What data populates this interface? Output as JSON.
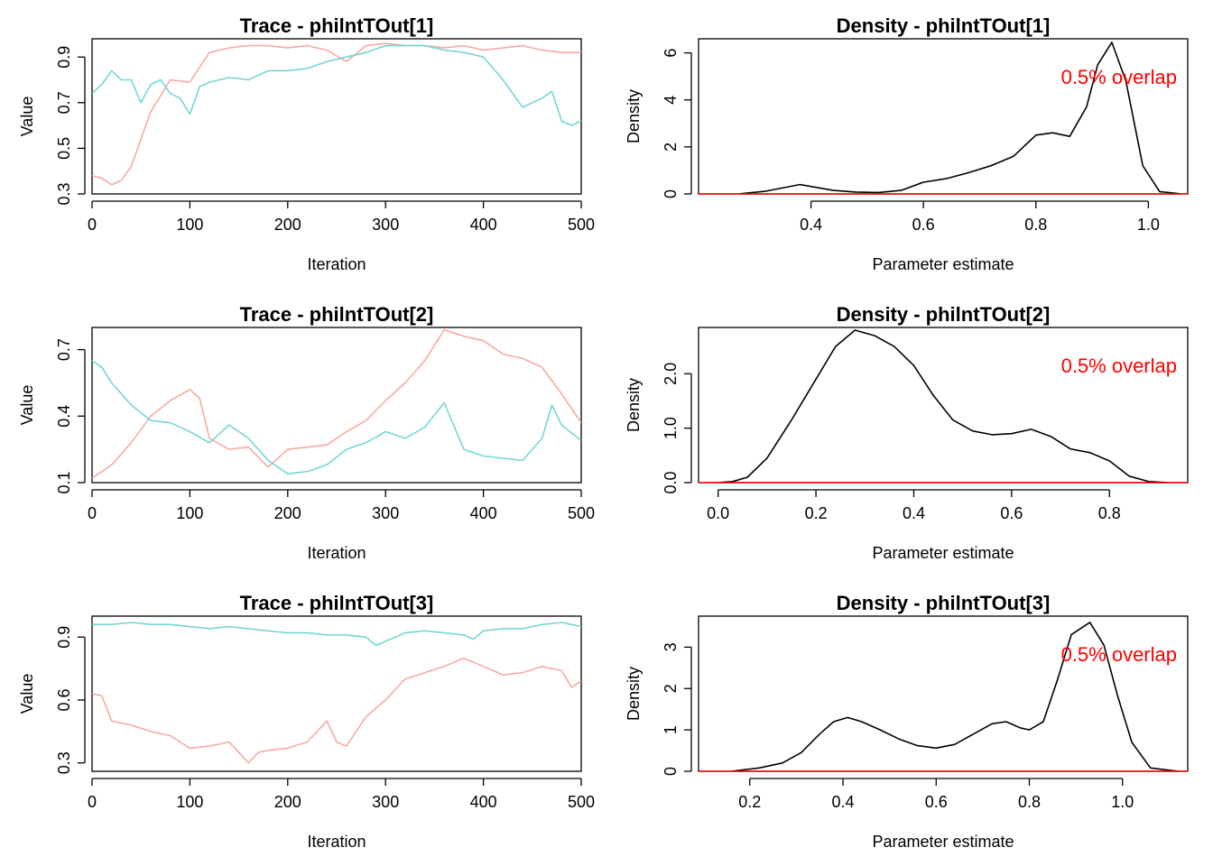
{
  "chart_data": [
    {
      "type": "line",
      "title": "Trace - philntTOut[1]",
      "xlabel": "Iteration",
      "ylabel": "Value",
      "xlim": [
        0,
        500
      ],
      "ylim": [
        0.3,
        0.98
      ],
      "xticks": [
        0,
        100,
        200,
        300,
        400,
        500
      ],
      "yticks": [
        0.3,
        0.5,
        0.7,
        0.9
      ],
      "ytick_labels": [
        "0.3",
        "0.5",
        "0.7",
        "0.9"
      ],
      "series": [
        {
          "color": "#f8a9a2",
          "x": [
            0,
            10,
            20,
            30,
            40,
            60,
            80,
            100,
            120,
            140,
            160,
            180,
            200,
            220,
            240,
            260,
            280,
            300,
            320,
            340,
            360,
            380,
            400,
            420,
            440,
            460,
            480,
            500
          ],
          "values": [
            0.38,
            0.37,
            0.34,
            0.36,
            0.42,
            0.66,
            0.8,
            0.79,
            0.92,
            0.94,
            0.95,
            0.95,
            0.94,
            0.95,
            0.93,
            0.88,
            0.95,
            0.96,
            0.95,
            0.95,
            0.94,
            0.95,
            0.93,
            0.94,
            0.95,
            0.93,
            0.92,
            0.92
          ]
        },
        {
          "color": "#75d6d6",
          "x": [
            0,
            10,
            20,
            30,
            40,
            50,
            60,
            70,
            80,
            90,
            100,
            110,
            120,
            140,
            160,
            180,
            200,
            220,
            240,
            260,
            280,
            300,
            320,
            340,
            360,
            380,
            400,
            420,
            440,
            460,
            470,
            480,
            490,
            500
          ],
          "values": [
            0.74,
            0.78,
            0.84,
            0.8,
            0.8,
            0.7,
            0.78,
            0.8,
            0.74,
            0.72,
            0.65,
            0.77,
            0.79,
            0.81,
            0.8,
            0.84,
            0.84,
            0.85,
            0.88,
            0.9,
            0.92,
            0.95,
            0.95,
            0.95,
            0.93,
            0.92,
            0.9,
            0.8,
            0.68,
            0.72,
            0.75,
            0.62,
            0.6,
            0.62
          ]
        }
      ]
    },
    {
      "type": "line",
      "title": "Density - philntTOut[1]",
      "xlabel": "Parameter estimate",
      "ylabel": "Density",
      "xlim": [
        0.2,
        1.07
      ],
      "ylim": [
        0,
        6.6
      ],
      "xticks": [
        0.4,
        0.6,
        0.8,
        1.0
      ],
      "xtick_labels": [
        "0.4",
        "0.6",
        "0.8",
        "1.0"
      ],
      "yticks": [
        0,
        2,
        4,
        6
      ],
      "ytick_labels": [
        "0",
        "2",
        "4",
        "6"
      ],
      "annotation": "0.5% overlap",
      "series": [
        {
          "color": "#000000",
          "x": [
            0.27,
            0.32,
            0.38,
            0.44,
            0.48,
            0.52,
            0.56,
            0.6,
            0.64,
            0.68,
            0.72,
            0.76,
            0.8,
            0.83,
            0.86,
            0.89,
            0.91,
            0.935,
            0.96,
            0.99,
            1.02,
            1.06
          ],
          "values": [
            0.0,
            0.12,
            0.4,
            0.15,
            0.08,
            0.06,
            0.15,
            0.5,
            0.65,
            0.9,
            1.2,
            1.6,
            2.5,
            2.6,
            2.45,
            3.7,
            5.5,
            6.45,
            4.8,
            1.2,
            0.1,
            0.0
          ]
        }
      ],
      "hline": {
        "y": 0,
        "color": "#ff0000"
      }
    },
    {
      "type": "line",
      "title": "Trace - philntTOut[2]",
      "xlabel": "Iteration",
      "ylabel": "Value",
      "xlim": [
        0,
        500
      ],
      "ylim": [
        0.1,
        0.8
      ],
      "xticks": [
        0,
        100,
        200,
        300,
        400,
        500
      ],
      "yticks": [
        0.1,
        0.4,
        0.7
      ],
      "ytick_labels": [
        "0.1",
        "0.4",
        "0.7"
      ],
      "series": [
        {
          "color": "#f8a9a2",
          "x": [
            0,
            20,
            40,
            60,
            80,
            100,
            110,
            120,
            140,
            160,
            180,
            200,
            220,
            240,
            260,
            280,
            300,
            320,
            340,
            360,
            380,
            400,
            420,
            440,
            460,
            480,
            500
          ],
          "values": [
            0.12,
            0.18,
            0.28,
            0.4,
            0.47,
            0.52,
            0.48,
            0.3,
            0.25,
            0.26,
            0.17,
            0.25,
            0.26,
            0.27,
            0.33,
            0.38,
            0.47,
            0.55,
            0.65,
            0.79,
            0.76,
            0.74,
            0.68,
            0.66,
            0.62,
            0.5,
            0.37
          ]
        },
        {
          "color": "#75d6d6",
          "x": [
            0,
            10,
            20,
            40,
            60,
            80,
            100,
            120,
            140,
            160,
            180,
            200,
            220,
            240,
            260,
            280,
            300,
            320,
            340,
            360,
            380,
            400,
            420,
            440,
            460,
            470,
            480,
            500
          ],
          "values": [
            0.65,
            0.62,
            0.55,
            0.45,
            0.38,
            0.37,
            0.33,
            0.28,
            0.36,
            0.3,
            0.2,
            0.14,
            0.15,
            0.18,
            0.25,
            0.28,
            0.33,
            0.3,
            0.35,
            0.46,
            0.25,
            0.22,
            0.21,
            0.2,
            0.3,
            0.45,
            0.36,
            0.29
          ]
        }
      ]
    },
    {
      "type": "line",
      "title": "Density - philntTOut[2]",
      "xlabel": "Parameter estimate",
      "ylabel": "Density",
      "xlim": [
        -0.04,
        0.96
      ],
      "ylim": [
        0,
        2.85
      ],
      "xticks": [
        0.0,
        0.2,
        0.4,
        0.6,
        0.8
      ],
      "xtick_labels": [
        "0.0",
        "0.2",
        "0.4",
        "0.6",
        "0.8"
      ],
      "yticks": [
        0.0,
        1.0,
        2.0
      ],
      "ytick_labels": [
        "0.0",
        "1.0",
        "2.0"
      ],
      "annotation": "0.5% overlap",
      "series": [
        {
          "color": "#000000",
          "x": [
            0.0,
            0.03,
            0.06,
            0.1,
            0.15,
            0.2,
            0.24,
            0.28,
            0.32,
            0.36,
            0.4,
            0.44,
            0.48,
            0.52,
            0.56,
            0.6,
            0.64,
            0.68,
            0.72,
            0.76,
            0.8,
            0.84,
            0.88,
            0.92
          ],
          "values": [
            0.0,
            0.02,
            0.1,
            0.45,
            1.15,
            1.9,
            2.5,
            2.8,
            2.7,
            2.5,
            2.15,
            1.6,
            1.15,
            0.95,
            0.88,
            0.9,
            0.98,
            0.85,
            0.62,
            0.55,
            0.4,
            0.12,
            0.02,
            0.0
          ]
        }
      ],
      "hline": {
        "y": 0,
        "color": "#ff0000"
      }
    },
    {
      "type": "line",
      "title": "Trace - philntTOut[3]",
      "xlabel": "Iteration",
      "ylabel": "Value",
      "xlim": [
        0,
        500
      ],
      "ylim": [
        0.26,
        1.0
      ],
      "xticks": [
        0,
        100,
        200,
        300,
        400,
        500
      ],
      "yticks": [
        0.3,
        0.6,
        0.9
      ],
      "ytick_labels": [
        "0.3",
        "0.6",
        "0.9"
      ],
      "series": [
        {
          "color": "#f8a9a2",
          "x": [
            0,
            10,
            20,
            40,
            60,
            80,
            100,
            120,
            140,
            160,
            170,
            180,
            200,
            220,
            240,
            250,
            260,
            280,
            300,
            320,
            340,
            360,
            380,
            400,
            420,
            440,
            460,
            480,
            490,
            500
          ],
          "values": [
            0.63,
            0.62,
            0.5,
            0.48,
            0.45,
            0.43,
            0.37,
            0.38,
            0.4,
            0.3,
            0.35,
            0.36,
            0.37,
            0.4,
            0.5,
            0.4,
            0.38,
            0.52,
            0.6,
            0.7,
            0.73,
            0.76,
            0.8,
            0.76,
            0.72,
            0.73,
            0.76,
            0.74,
            0.66,
            0.69
          ]
        },
        {
          "color": "#75d6d6",
          "x": [
            0,
            20,
            40,
            60,
            80,
            100,
            120,
            140,
            160,
            180,
            200,
            220,
            240,
            260,
            280,
            290,
            300,
            320,
            340,
            360,
            380,
            390,
            400,
            420,
            440,
            460,
            480,
            500
          ],
          "values": [
            0.96,
            0.96,
            0.97,
            0.96,
            0.96,
            0.95,
            0.94,
            0.95,
            0.94,
            0.93,
            0.92,
            0.92,
            0.91,
            0.91,
            0.9,
            0.86,
            0.88,
            0.92,
            0.93,
            0.92,
            0.91,
            0.89,
            0.93,
            0.94,
            0.94,
            0.96,
            0.97,
            0.95
          ]
        }
      ]
    },
    {
      "type": "line",
      "title": "Density - philntTOut[3]",
      "xlabel": "Parameter estimate",
      "ylabel": "Density",
      "xlim": [
        0.09,
        1.14
      ],
      "ylim": [
        0,
        3.75
      ],
      "xticks": [
        0.2,
        0.4,
        0.6,
        0.8,
        1.0
      ],
      "xtick_labels": [
        "0.2",
        "0.4",
        "0.6",
        "0.8",
        "1.0"
      ],
      "yticks": [
        0,
        1,
        2,
        3
      ],
      "ytick_labels": [
        "0",
        "1",
        "2",
        "3"
      ],
      "annotation": "0.5% overlap",
      "series": [
        {
          "color": "#000000",
          "x": [
            0.16,
            0.22,
            0.27,
            0.31,
            0.35,
            0.38,
            0.41,
            0.44,
            0.48,
            0.52,
            0.56,
            0.6,
            0.64,
            0.68,
            0.72,
            0.75,
            0.78,
            0.8,
            0.83,
            0.86,
            0.89,
            0.93,
            0.96,
            0.99,
            1.02,
            1.06,
            1.12
          ],
          "values": [
            0.0,
            0.08,
            0.2,
            0.45,
            0.9,
            1.2,
            1.3,
            1.2,
            1.0,
            0.78,
            0.62,
            0.56,
            0.65,
            0.9,
            1.15,
            1.2,
            1.05,
            1.0,
            1.2,
            2.2,
            3.3,
            3.6,
            3.05,
            1.8,
            0.7,
            0.08,
            0.0
          ]
        }
      ],
      "hline": {
        "y": 0,
        "color": "#ff0000"
      }
    }
  ]
}
